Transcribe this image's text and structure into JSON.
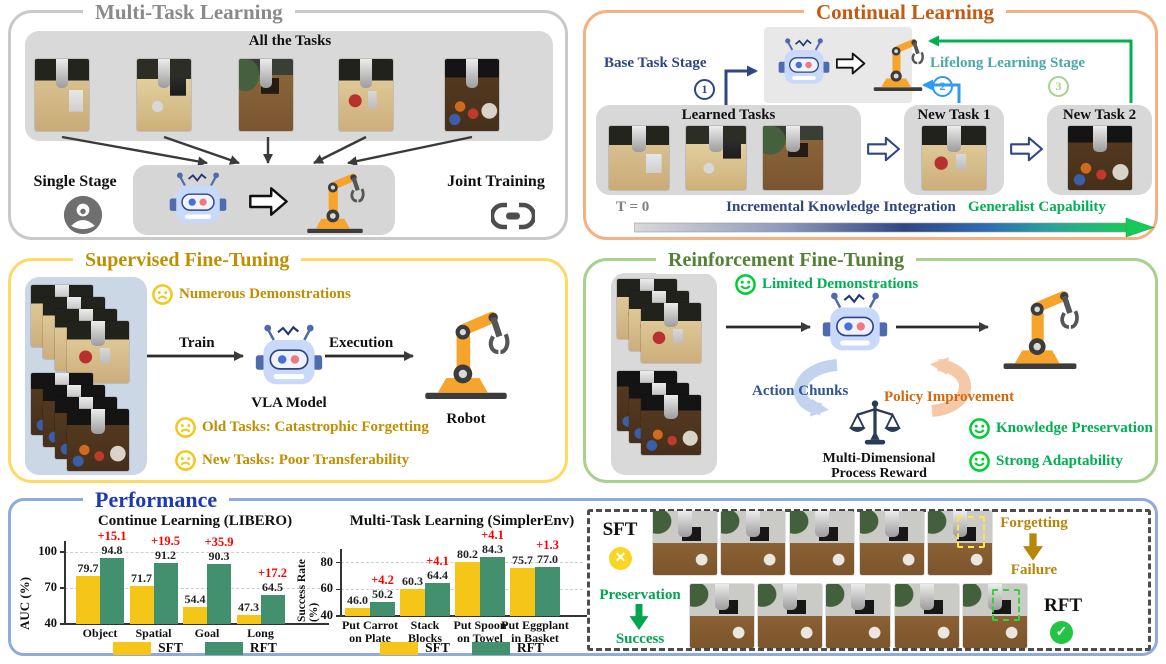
{
  "panels": {
    "multitask": {
      "title": "Multi-Task Learning",
      "tasks_label": "All the Tasks",
      "left_label": "Single Stage",
      "right_label": "Joint Training"
    },
    "continual": {
      "title": "Continual Learning",
      "base_stage": "Base Task Stage",
      "lifelong_stage": "Lifelong Learning Stage",
      "step1": "1",
      "step2": "2",
      "step3": "3",
      "learned_tasks": "Learned Tasks",
      "new_task1": "New Task 1",
      "new_task2": "New Task 2",
      "t0": "T = 0",
      "incremental": "Incremental Knowledge Integration",
      "generalist": "Generalist Capability"
    },
    "sft": {
      "title": "Supervised Fine-Tuning",
      "numerous": "Numerous Demonstrations",
      "train": "Train",
      "execution": "Execution",
      "vla_model": "VLA Model",
      "robot": "Robot",
      "old_tasks": "Old Tasks: Catastrophic Forgetting",
      "new_tasks": "New Tasks: Poor Transferability"
    },
    "rft": {
      "title": "Reinforcement Fine-Tuning",
      "limited": "Limited Demonstrations",
      "action_chunks": "Action Chunks",
      "policy_improvement": "Policy Improvement",
      "reward_line1": "Multi-Dimensional",
      "reward_line2": "Process Reward",
      "knowledge": "Knowledge Preservation",
      "adaptability": "Strong Adaptability"
    },
    "performance": {
      "title": "Performance",
      "sft_label": "SFT",
      "rft_label": "RFT",
      "forgetting": "Forgetting",
      "failure": "Failure",
      "preservation": "Preservation",
      "success": "Success"
    }
  },
  "icons": {
    "check_glyph": "✓",
    "cross_glyph": "✕"
  },
  "chart_data": [
    {
      "type": "bar",
      "title": "Continue Learning (LIBERO)",
      "ylabel": "AUC (%)",
      "categories": [
        "Object",
        "Spatial",
        "Goal",
        "Long"
      ],
      "series": [
        {
          "name": "SFT",
          "color": "#f5c518",
          "values": [
            79.7,
            71.7,
            54.4,
            47.3
          ]
        },
        {
          "name": "RFT",
          "color": "#43906f",
          "values": [
            94.8,
            91.2,
            90.3,
            64.5
          ]
        }
      ],
      "deltas": [
        "+15.1",
        "+19.5",
        "+35.9",
        "+17.2"
      ],
      "yticks": [
        40,
        70,
        100
      ],
      "ylim": [
        40,
        112
      ],
      "grid": true,
      "legend_position": "bottom"
    },
    {
      "type": "bar",
      "title": "Multi-Task Learning (SimplerEnv)",
      "ylabel": "Success Rate (%)",
      "categories": [
        "Put Carrot\non Plate",
        "Stack\nBlocks",
        "Put Spoon\non Towel",
        "Put Eggplant\nin Basket"
      ],
      "series": [
        {
          "name": "SFT",
          "color": "#f5c518",
          "values": [
            46.0,
            60.3,
            80.2,
            75.7
          ]
        },
        {
          "name": "RFT",
          "color": "#43906f",
          "values": [
            50.2,
            64.4,
            84.3,
            77.0
          ]
        }
      ],
      "deltas": [
        "+4.2",
        "+4.1",
        "+4.1",
        "+1.3"
      ],
      "yticks": [
        40,
        60,
        80
      ],
      "ylim": [
        40,
        95
      ],
      "grid": true,
      "legend_position": "bottom"
    }
  ],
  "colors": {
    "multitask_title": "#8a8a8a",
    "continual_title": "#c55a11",
    "sft_title": "#bf8f00",
    "rft_title": "#538135",
    "performance_title": "#1c3ab5",
    "navy": "#2f4684",
    "teal": "#4aa9a2",
    "step2_blue": "#2e9bf0",
    "step3_green": "#a9d18e",
    "green": "#00b050",
    "gold": "#b8860b",
    "delta_red": "#ff0000",
    "sft_bar": "#f5c518",
    "rft_bar": "#43906f"
  }
}
